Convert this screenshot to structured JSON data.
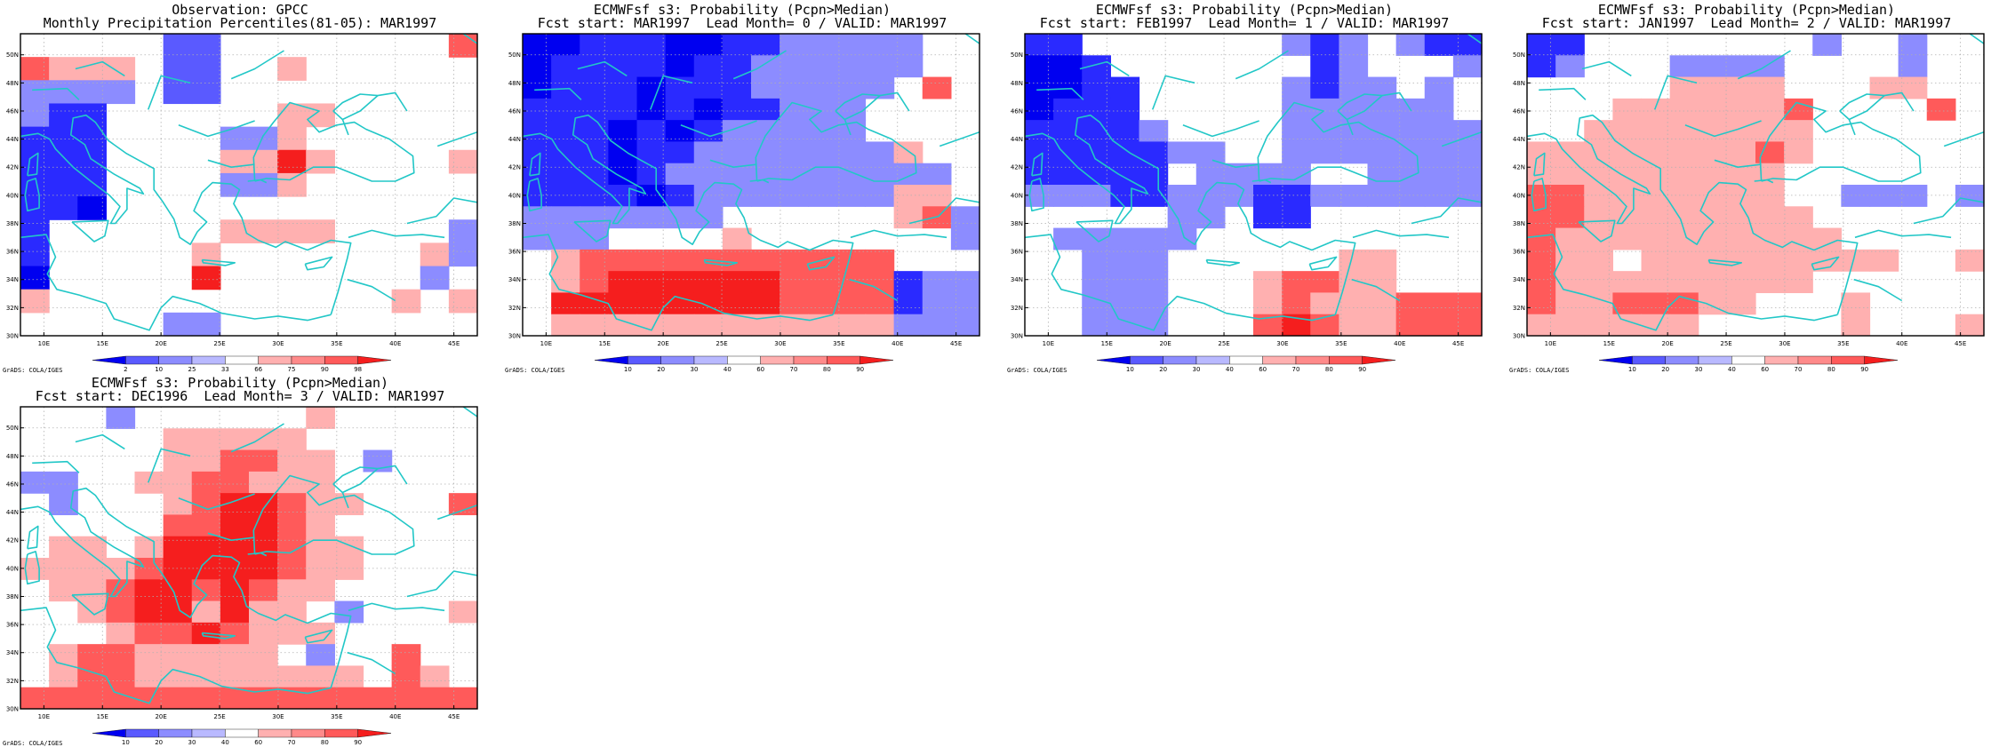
{
  "lon_ticks": [
    "10E",
    "15E",
    "20E",
    "25E",
    "30E",
    "35E",
    "40E",
    "45E"
  ],
  "lat_ticks": [
    "30N",
    "32N",
    "34N",
    "36N",
    "38N",
    "40N",
    "42N",
    "44N",
    "46N",
    "48N",
    "50N"
  ],
  "colors": {
    "coast": "#22c7c7",
    "frame": "#000000",
    "grid": "#b0b0b0",
    "levels": [
      "#0000f0",
      "#2a2aff",
      "#5a5aff",
      "#8c8cff",
      "#b9b9ff",
      "#ffffff",
      "#ffb0b0",
      "#ff8a8a",
      "#ff5a5a",
      "#f51e1e",
      "#e60000"
    ]
  },
  "panels": [
    {
      "title1": "Observation: GPCC",
      "title2": "Monthly Precipitation Percentiles(81-05): MAR1997",
      "colorbar": [
        "2",
        "10",
        "25",
        "33",
        "66",
        "75",
        "90",
        "98"
      ],
      "credit": "GrADS: COLA/IGES",
      "grid": [
        "WWWWWBBWWWWWWWWR",
        "RSSSWBBWWSWWWWWW",
        "LLLLWBBWWWWWWWWW",
        "LMMWWWWWWSSWWWWW",
        "MMMWWWWLLSWWWWWW",
        "MMMWWWWSSVSWWWWS",
        "MMMWWWWLLSWWWWWW",
        "MMNWWWWWWWWWWWWW",
        "MWWWWWWSSSSWWWWL",
        "MWWWWWSWWWWWWWSL",
        "NWWWWWVWWWWWWWLW",
        "SWWWWWWWWWWWWSWS",
        "WWWWWLLWWWWWWWWW"
      ]
    },
    {
      "title1": "ECMWFsf s3: Probability (Pcpn>Median)",
      "title2": "Fcst start: MAR1997  Lead Month= 0 / VALID: MAR1997",
      "colorbar": [
        "10",
        "20",
        "30",
        "40",
        "60",
        "70",
        "80",
        "90"
      ],
      "credit": "GrADS: COLA/IGES",
      "grid": [
        "NNMMMNNMMLLLLLWW",
        "NMMMMNMMLLLLLLWW",
        "NMMMNMMMLLLLLWRW",
        "MMMMNMNMMLLLWWWW",
        "MMMNMNMLLLLLWWWW",
        "MMMNMMLLLLLLLSWW",
        "MMMNMLLLLLLLLLLW",
        "MMMMNMLLLLLLLSSW",
        "LLLLLLLWWWWWWSRL",
        "LLLWWWWSWWWWWWWL",
        "WSRRRRRRRRRRRWWW",
        "WSRVVVVVVRRRRMLL",
        "WVVVVVVVVRRRRMLL",
        "WSSSSSSSSSSSSLLL"
      ]
    },
    {
      "title1": "ECMWFsf s3: Probability (Pcpn>Median)",
      "title2": "Fcst start: FEB1997  Lead Month= 1 / VALID: MAR1997",
      "colorbar": [
        "10",
        "20",
        "30",
        "40",
        "60",
        "70",
        "80",
        "90"
      ],
      "credit": "GrADS: COLA/IGES",
      "grid": [
        "MMWWWWWWWLMLWLMM",
        "NNMWWWWWWWMLWWWL",
        "NNMMWWWWWLMLLWLW",
        "NMMMWWWWWLLLLLLW",
        "MMMMLWWWWLLLLLLL",
        "MMMMMLLWWLLLLLLL",
        "MMMMMWLLLLWWLLLL",
        "LLLMMLLLMMLLLLLL",
        "WWWWWLLWMMWWWWWW",
        "WLLLLLWWWWWWWWWW",
        "WWLLLWWWWWWSSWWW",
        "WWLLLWWWSRRSSWWW",
        "WWLLLWWWSRSSSRRR",
        "WWLLLWWWRVRSSRRR"
      ]
    },
    {
      "title1": "ECMWFsf s3: Probability (Pcpn>Median)",
      "title2": "Fcst start: JAN1997  Lead Month= 2 / VALID: MAR1997",
      "colorbar": [
        "10",
        "20",
        "30",
        "40",
        "60",
        "70",
        "80",
        "90"
      ],
      "credit": "GrADS: COLA/IGES",
      "grid": [
        "MMWWWWWWWWLWWLWW",
        "MLWWWLLLLWWWWLWW",
        "WWWWWSSSSWWWSSWW",
        "WWWSSSSSSRWWWWRW",
        "WWSSSSSSSSWWWWWW",
        "SSSSSSSSRSWWWWWW",
        "SSSSSSSSSWWWWWWW",
        "RRSSSSSSSWWLLLWL",
        "RRSSSSSSSSWWWWWW",
        "RSSSSSSSSSSWWWWW",
        "RSSWSSSSSSSSSWWS",
        "RSSSSSSSSSWWWWWW",
        "RSSRRRSSWWWSWWWW",
        "SSSSSSWWWWWSWWWS"
      ]
    },
    {
      "title1": "ECMWFsf s3: Probability (Pcpn>Median)",
      "title2": "Fcst start: DEC1996  Lead Month= 3 / VALID: MAR1997",
      "colorbar": [
        "10",
        "20",
        "30",
        "40",
        "60",
        "70",
        "80",
        "90"
      ],
      "credit": "GrADS: COLA/IGES",
      "grid": [
        "WWWLWWWWWWSWWWWW",
        "WWWWWSSSSSWWWWWW",
        "WWWWWSSRRSSWLWWW",
        "LLWWSSRRSSSWWWWW",
        "WLWWWSRVVRSSWWWR",
        "WWWWWRRVVRSWWWWW",
        "WSSWSVVVVRSSWWWW",
        "SSSSRVVVVRSSWWWW",
        "WSSRVVRVRSSWWWWW",
        "WWSRVVSVSSWLWWWS",
        "WWWSRRVRSSSWWWWW",
        "WSRRSSSSSWLWWRWW",
        "WSRRSSSSSSSSWRSW",
        "RRRRRRRRRRRRRRRR"
      ]
    }
  ]
}
